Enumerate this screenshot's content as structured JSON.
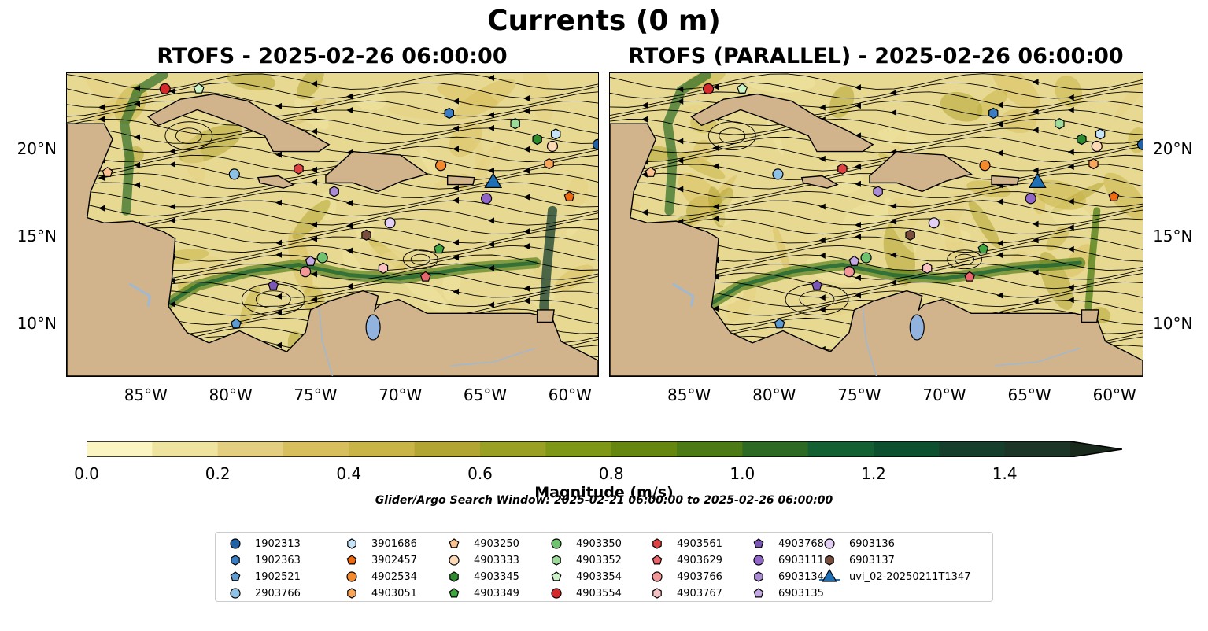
{
  "title": "Currents (0 m)",
  "panels": [
    {
      "title": "RTOFS - 2025-02-26 06:00:00"
    },
    {
      "title": "RTOFS (PARALLEL) - 2025-02-26 06:00:00"
    }
  ],
  "axes": {
    "x_ticks": [
      "85°W",
      "80°W",
      "75°W",
      "70°W",
      "65°W",
      "60°W"
    ],
    "x_tick_values": [
      -85,
      -80,
      -75,
      -70,
      -65,
      -60
    ],
    "y_ticks": [
      "20°N",
      "15°N",
      "10°N"
    ],
    "y_tick_values": [
      20,
      15,
      10
    ],
    "lon_range": [
      -89.7,
      -58.3
    ],
    "lat_range": [
      7.0,
      24.4
    ]
  },
  "colorbar": {
    "label": "Magnitude (m/s)",
    "ticks": [
      "0.0",
      "0.2",
      "0.4",
      "0.6",
      "0.8",
      "1.0",
      "1.2",
      "1.4"
    ],
    "tick_values": [
      0,
      0.2,
      0.4,
      0.6,
      0.8,
      1.0,
      1.2,
      1.4
    ],
    "range": [
      0,
      1.5
    ],
    "extend": "max",
    "colors": [
      "#fbf5c1",
      "#efe3a0",
      "#e3cf7f",
      "#d8bf5e",
      "#c9b447",
      "#b3a533",
      "#9aa024",
      "#7f9717",
      "#65870f",
      "#4c7a14",
      "#2d6b25",
      "#136033",
      "#0d5030",
      "#153f2c",
      "#1c3526",
      "#19291c"
    ]
  },
  "search_window": "Glider/Argo Search Window: 2025-02-21 06:00:00 to 2025-02-26 06:00:00",
  "colors": {
    "land": "#d1b38c",
    "lake": "#91b3dd",
    "river": "#a0b8d0",
    "ocean_base": "#e8d992"
  },
  "legend": [
    {
      "label": "1902313",
      "marker": "circle",
      "color": "#1f62a6"
    },
    {
      "label": "1902363",
      "marker": "hexagon",
      "color": "#3a7dc2"
    },
    {
      "label": "1902521",
      "marker": "pentagon",
      "color": "#5c9bd3"
    },
    {
      "label": "2903766",
      "marker": "circle",
      "color": "#8ec1e6"
    },
    {
      "label": "3901686",
      "marker": "hexagon",
      "color": "#c6e3f7"
    },
    {
      "label": "3902457",
      "marker": "pentagon",
      "color": "#ee6a10"
    },
    {
      "label": "4902534",
      "marker": "circle",
      "color": "#f38a2e"
    },
    {
      "label": "4903051",
      "marker": "hexagon",
      "color": "#f7a65a"
    },
    {
      "label": "4903250",
      "marker": "pentagon",
      "color": "#fbc28f"
    },
    {
      "label": "4903333",
      "marker": "circle",
      "color": "#fdd9b5"
    },
    {
      "label": "4903345",
      "marker": "hexagon",
      "color": "#2e8c2e"
    },
    {
      "label": "4903349",
      "marker": "pentagon",
      "color": "#3fa63f"
    },
    {
      "label": "4903350",
      "marker": "circle",
      "color": "#6fc36f"
    },
    {
      "label": "4903352",
      "marker": "hexagon",
      "color": "#9cdb99"
    },
    {
      "label": "4903354",
      "marker": "pentagon",
      "color": "#cbf3c6"
    },
    {
      "label": "4903554",
      "marker": "circle",
      "color": "#d42a2a"
    },
    {
      "label": "4903561",
      "marker": "hexagon",
      "color": "#e04242"
    },
    {
      "label": "4903629",
      "marker": "pentagon",
      "color": "#e8656b"
    },
    {
      "label": "4903766",
      "marker": "circle",
      "color": "#f29898"
    },
    {
      "label": "4903767",
      "marker": "hexagon",
      "color": "#f8c2c2"
    },
    {
      "label": "4903768",
      "marker": "pentagon",
      "color": "#7b55b8"
    },
    {
      "label": "6903111",
      "marker": "circle",
      "color": "#9266c9"
    },
    {
      "label": "6903134",
      "marker": "hexagon",
      "color": "#ab8ad6"
    },
    {
      "label": "6903135",
      "marker": "pentagon",
      "color": "#c3a8e4"
    },
    {
      "label": "6903136",
      "marker": "circle",
      "color": "#e2cff3"
    },
    {
      "label": "6903137",
      "marker": "hexagon",
      "color": "#7a4e3c"
    },
    {
      "label": "uvi_02-20250211T1347",
      "marker": "triangle",
      "color": "#1f6fb4"
    }
  ],
  "floats": [
    {
      "id": "1902313",
      "lon": -58.3,
      "lat": 20.3,
      "marker": "circle",
      "color": "#1f62a6"
    },
    {
      "id": "1902363",
      "lon": -67.1,
      "lat": 22.1,
      "marker": "hexagon",
      "color": "#3a7dc2"
    },
    {
      "id": "1902521",
      "lon": -79.7,
      "lat": 10.0,
      "marker": "pentagon",
      "color": "#5c9bd3"
    },
    {
      "id": "2903766",
      "lon": -79.8,
      "lat": 18.6,
      "marker": "circle",
      "color": "#8ec1e6"
    },
    {
      "id": "3901686",
      "lon": -60.8,
      "lat": 20.9,
      "marker": "hexagon",
      "color": "#c6e3f7"
    },
    {
      "id": "3902457",
      "lon": -60.0,
      "lat": 17.3,
      "marker": "pentagon",
      "color": "#ee6a10"
    },
    {
      "id": "4902534",
      "lon": -67.6,
      "lat": 19.1,
      "marker": "circle",
      "color": "#f38a2e"
    },
    {
      "id": "4903051",
      "lon": -61.2,
      "lat": 19.2,
      "marker": "hexagon",
      "color": "#f7a65a"
    },
    {
      "id": "4903250",
      "lon": -87.3,
      "lat": 18.7,
      "marker": "pentagon",
      "color": "#fbc28f"
    },
    {
      "id": "4903333",
      "lon": -61.0,
      "lat": 20.2,
      "marker": "circle",
      "color": "#fdd9b5"
    },
    {
      "id": "4903345",
      "lon": -61.9,
      "lat": 20.6,
      "marker": "hexagon",
      "color": "#2e8c2e"
    },
    {
      "id": "4903349",
      "lon": -67.7,
      "lat": 14.3,
      "marker": "pentagon",
      "color": "#3fa63f"
    },
    {
      "id": "4903350",
      "lon": -74.6,
      "lat": 13.8,
      "marker": "circle",
      "color": "#6fc36f"
    },
    {
      "id": "4903352",
      "lon": -63.2,
      "lat": 21.5,
      "marker": "hexagon",
      "color": "#9cdb99"
    },
    {
      "id": "4903354",
      "lon": -81.9,
      "lat": 23.5,
      "marker": "pentagon",
      "color": "#cbf3c6"
    },
    {
      "id": "4903554",
      "lon": -83.9,
      "lat": 23.5,
      "marker": "circle",
      "color": "#d42a2a"
    },
    {
      "id": "4903561",
      "lon": -76.0,
      "lat": 18.9,
      "marker": "hexagon",
      "color": "#e04242"
    },
    {
      "id": "4903629",
      "lon": -68.5,
      "lat": 12.7,
      "marker": "pentagon",
      "color": "#e8656b"
    },
    {
      "id": "4903766",
      "lon": -75.6,
      "lat": 13.0,
      "marker": "circle",
      "color": "#f29898"
    },
    {
      "id": "4903767",
      "lon": -71.0,
      "lat": 13.2,
      "marker": "hexagon",
      "color": "#f8c2c2"
    },
    {
      "id": "4903768",
      "lon": -77.5,
      "lat": 12.2,
      "marker": "pentagon",
      "color": "#7b55b8"
    },
    {
      "id": "6903111",
      "lon": -64.9,
      "lat": 17.2,
      "marker": "circle",
      "color": "#9266c9"
    },
    {
      "id": "6903134",
      "lon": -73.9,
      "lat": 17.6,
      "marker": "hexagon",
      "color": "#ab8ad6"
    },
    {
      "id": "6903135",
      "lon": -75.3,
      "lat": 13.6,
      "marker": "pentagon",
      "color": "#c3a8e4"
    },
    {
      "id": "6903136",
      "lon": -70.6,
      "lat": 15.8,
      "marker": "circle",
      "color": "#e2cff3"
    },
    {
      "id": "6903137",
      "lon": -72.0,
      "lat": 15.1,
      "marker": "hexagon",
      "color": "#7a4e3c"
    },
    {
      "id": "uvi_02-20250211T1347",
      "lon": -64.5,
      "lat": 18.1,
      "marker": "triangle",
      "color": "#1f6fb4"
    }
  ]
}
